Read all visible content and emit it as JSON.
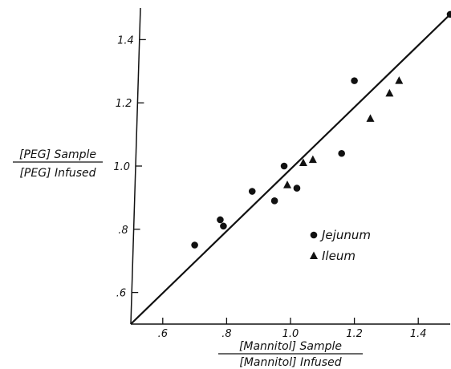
{
  "chart_data": {
    "type": "scatter",
    "title": "",
    "xlabel": {
      "numerator": "[Mannitol] Sample",
      "denominator": "[Mannitol] Infused"
    },
    "ylabel": {
      "numerator": "[PEG] Sample",
      "denominator": "[PEG] Infused"
    },
    "xlim": [
      0.5,
      1.5
    ],
    "ylim": [
      0.5,
      1.5
    ],
    "x_ticks": [
      {
        "value": 0.6,
        "label": ".6"
      },
      {
        "value": 0.8,
        "label": ".8"
      },
      {
        "value": 1.0,
        "label": "1.0"
      },
      {
        "value": 1.2,
        "label": "1.2"
      },
      {
        "value": 1.4,
        "label": "1.4"
      }
    ],
    "y_ticks": [
      {
        "value": 0.6,
        "label": ".6"
      },
      {
        "value": 0.8,
        "label": ".8"
      },
      {
        "value": 1.0,
        "label": "1.0"
      },
      {
        "value": 1.2,
        "label": "1.2"
      },
      {
        "value": 1.4,
        "label": "1.4"
      }
    ],
    "grid": false,
    "legend_position": "right",
    "reference_line": {
      "from": [
        0.5,
        0.5
      ],
      "to": [
        1.5,
        1.48
      ]
    },
    "series": [
      {
        "name": "Jejunum",
        "marker": "circle",
        "points": [
          {
            "x": 0.7,
            "y": 0.75
          },
          {
            "x": 0.78,
            "y": 0.83
          },
          {
            "x": 0.79,
            "y": 0.81
          },
          {
            "x": 0.88,
            "y": 0.92
          },
          {
            "x": 0.95,
            "y": 0.89
          },
          {
            "x": 0.98,
            "y": 1.0
          },
          {
            "x": 1.02,
            "y": 0.93
          },
          {
            "x": 1.16,
            "y": 1.04
          },
          {
            "x": 1.2,
            "y": 1.27
          },
          {
            "x": 1.5,
            "y": 1.48
          }
        ]
      },
      {
        "name": "Ileum",
        "marker": "triangle",
        "points": [
          {
            "x": 0.99,
            "y": 0.94
          },
          {
            "x": 1.04,
            "y": 1.01
          },
          {
            "x": 1.07,
            "y": 1.02
          },
          {
            "x": 1.25,
            "y": 1.15
          },
          {
            "x": 1.31,
            "y": 1.23
          },
          {
            "x": 1.34,
            "y": 1.27
          }
        ]
      }
    ]
  }
}
